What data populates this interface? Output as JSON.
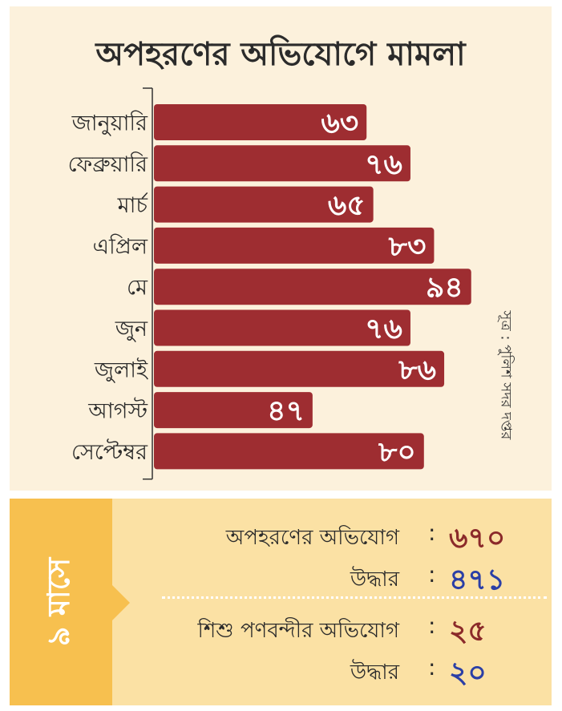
{
  "title": "অপহরণের অভিযোগে মামলা",
  "source": "সূত্র : পুলিশ সদর দপ্তর",
  "chart_data": {
    "type": "bar",
    "orientation": "horizontal",
    "title": "অপহরণের অভিযোগে মামলা",
    "categories": [
      "জানুয়ারি",
      "ফেব্রুয়ারি",
      "মার্চ",
      "এপ্রিল",
      "মে",
      "জুন",
      "জুলাই",
      "আগস্ট",
      "সেপ্টেম্বর"
    ],
    "values": [
      63,
      76,
      65,
      83,
      94,
      76,
      86,
      47,
      80
    ],
    "value_labels": [
      "৬৩",
      "৭৬",
      "৬৫",
      "৮৩",
      "৯৪",
      "৭৬",
      "৮৬",
      "৪৭",
      "৮০"
    ],
    "bar_color": "#9e2d31",
    "label_color": "#ffffff",
    "grid": false
  },
  "summary": {
    "period_label": "৯ মাসে",
    "items": [
      {
        "label": "অপহরণের অভিযোগ",
        "colon": ":",
        "value": "৬৭০",
        "color": "#8b2a2a"
      },
      {
        "label": "উদ্ধার",
        "colon": ":",
        "value": "৪৭১",
        "color": "#2b3fa6"
      },
      {
        "label": "শিশু পণবন্দীর অভিযোগ",
        "colon": ":",
        "value": "২৫",
        "color": "#8b2a2a"
      },
      {
        "label": "উদ্ধার",
        "colon": ":",
        "value": "২০",
        "color": "#2b3fa6"
      }
    ]
  },
  "colors": {
    "panel_top": "#fcf1dc",
    "panel_bottom": "#fbe1a4",
    "side_accent": "#f7c04f"
  }
}
